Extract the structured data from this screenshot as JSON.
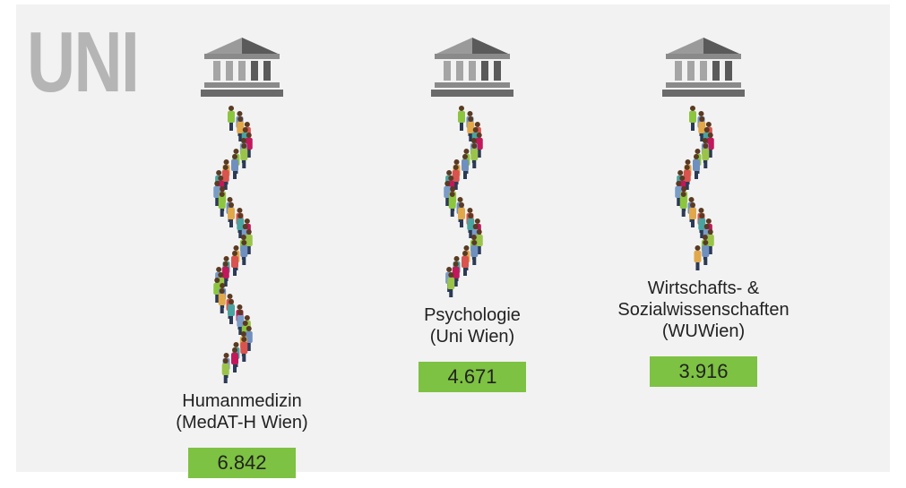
{
  "chart_data": {
    "type": "pictogram",
    "title": "UNI",
    "categories": [
      "Humanmedizin\n(MedAT-H Wien)",
      "Psychologie\n(Uni Wien)",
      "Wirtschafts- &\nSozialwissenschaften\n(WUWien)"
    ],
    "values": [
      6842,
      4671,
      3916
    ],
    "value_labels": [
      "6.842",
      "4.671",
      "3.916"
    ],
    "color": "#7dc242"
  }
}
